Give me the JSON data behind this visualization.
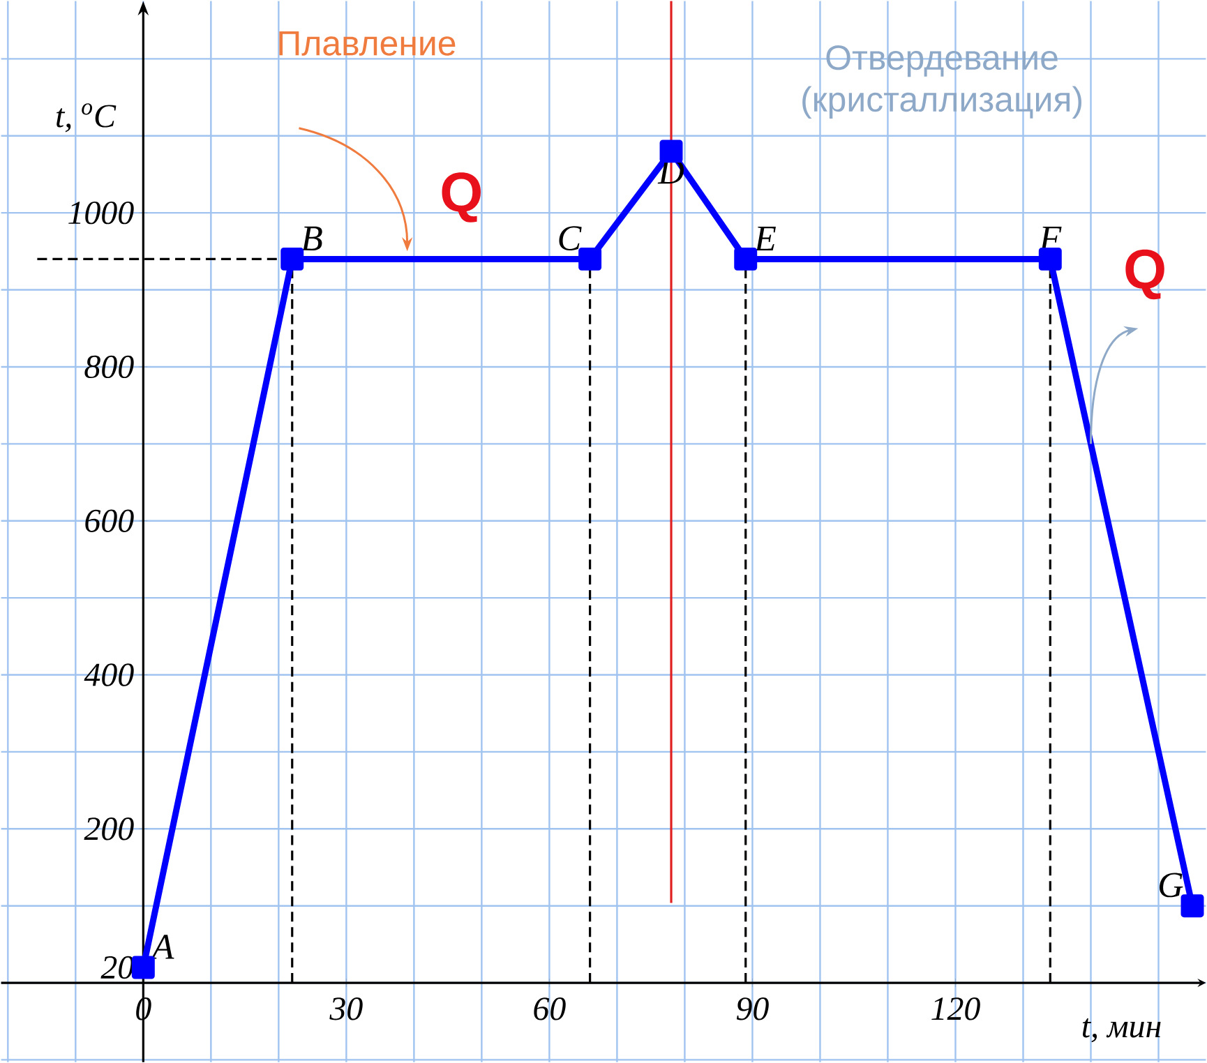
{
  "chart_data": {
    "type": "line",
    "xlabel": "t, мин",
    "ylabel": "t, $^{o}$C",
    "x": [
      0,
      22,
      66,
      78,
      89,
      134,
      155
    ],
    "series": [
      {
        "color": "#0000ff",
        "values": [
          20,
          940,
          940,
          1080,
          940,
          940,
          100
        ]
      }
    ],
    "xlim": [
      -21,
      157
    ],
    "ylim": [
      -103,
      1275
    ],
    "xticks": [
      0,
      30,
      60,
      90,
      120
    ],
    "yticks": [
      20,
      200,
      400,
      600,
      800,
      1000
    ],
    "grid": true,
    "marker": "square",
    "line_style": "solid",
    "ref_lines": [
      {
        "axis": "x",
        "value": 78,
        "color": "#e02020",
        "line_style": "solid"
      },
      {
        "axis": "x",
        "value": 22,
        "color": "#000000",
        "line_style": "dashed"
      },
      {
        "axis": "x",
        "value": 66,
        "color": "#000000",
        "line_style": "dashed"
      },
      {
        "axis": "x",
        "value": 89,
        "color": "#000000",
        "line_style": "dashed"
      },
      {
        "axis": "x",
        "value": 134,
        "color": "#000000",
        "line_style": "dashed"
      },
      {
        "axis": "y",
        "value": 940,
        "color": "#000000",
        "line_style": "dashed"
      }
    ],
    "annotations": [
      {
        "text": "A",
        "x": 0,
        "y": 20
      },
      {
        "text": "B",
        "x": 22,
        "y": 940
      },
      {
        "text": "C",
        "x": 66,
        "y": 940
      },
      {
        "text": "D",
        "x": 78,
        "y": 1080
      },
      {
        "text": "E",
        "x": 89,
        "y": 940
      },
      {
        "text": "F",
        "x": 134,
        "y": 940
      },
      {
        "text": "G",
        "x": 155,
        "y": 100
      },
      "Плавление",
      "Отвердевание (кристаллизация)",
      "Q",
      "Q"
    ]
  }
}
